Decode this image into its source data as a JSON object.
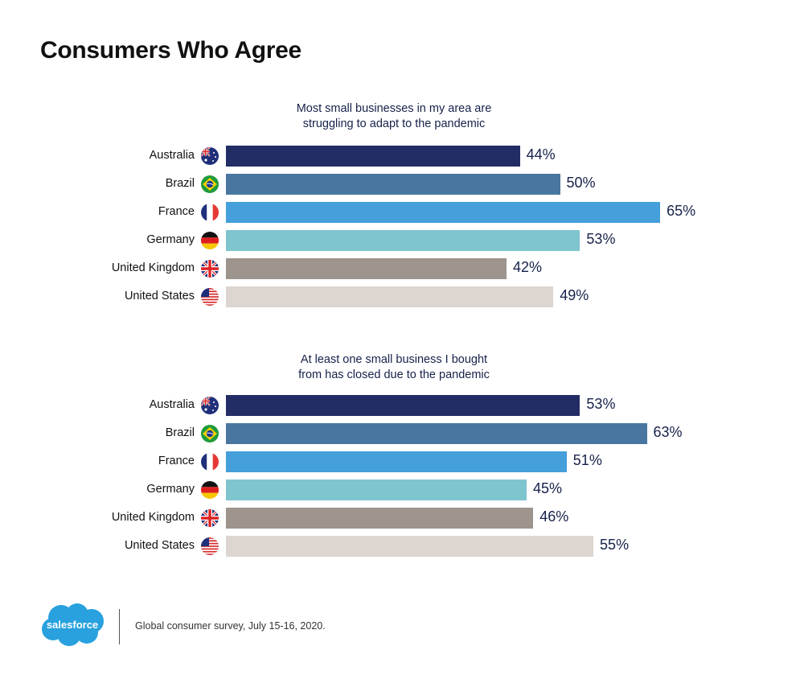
{
  "title": "Consumers Who Agree",
  "colors": {
    "Australia": "#222d66",
    "Brazil": "#4876a1",
    "France": "#449fdb",
    "Germany": "#7ec5ce",
    "United Kingdom": "#9c948d",
    "United States": "#ddd6d0",
    "text_dark": "#16214a",
    "logo": "#28a1de"
  },
  "chart_data": [
    {
      "type": "bar",
      "orientation": "horizontal",
      "title": "Most small businesses in my area are struggling to adapt to the pandemic",
      "title_lines": [
        "Most small businesses in my area are",
        "struggling to adapt to the pandemic"
      ],
      "categories": [
        "Australia",
        "Brazil",
        "France",
        "Germany",
        "United Kingdom",
        "United States"
      ],
      "values": [
        44,
        50,
        65,
        53,
        42,
        49
      ],
      "value_labels": [
        "44%",
        "50%",
        "65%",
        "53%",
        "42%",
        "49%"
      ],
      "unit": "%",
      "xlim": [
        0,
        100
      ],
      "grid": false,
      "legend": "none"
    },
    {
      "type": "bar",
      "orientation": "horizontal",
      "title": "At least one small business I bought from has closed due to the pandemic",
      "title_lines": [
        "At least one small business I bought",
        "from has closed due to the pandemic"
      ],
      "categories": [
        "Australia",
        "Brazil",
        "France",
        "Germany",
        "United Kingdom",
        "United States"
      ],
      "values": [
        53,
        63,
        51,
        45,
        46,
        55
      ],
      "value_labels": [
        "53%",
        "63%",
        "51%",
        "45%",
        "46%",
        "55%"
      ],
      "unit": "%",
      "xlim": [
        0,
        100
      ],
      "grid": false,
      "legend": "none"
    }
  ],
  "flags": {
    "Australia": "australia-flag-icon",
    "Brazil": "brazil-flag-icon",
    "France": "france-flag-icon",
    "Germany": "germany-flag-icon",
    "United Kingdom": "uk-flag-icon",
    "United States": "us-flag-icon"
  },
  "footer": {
    "logo_text": "salesforce",
    "source": "Global consumer survey, July 15-16, 2020."
  }
}
